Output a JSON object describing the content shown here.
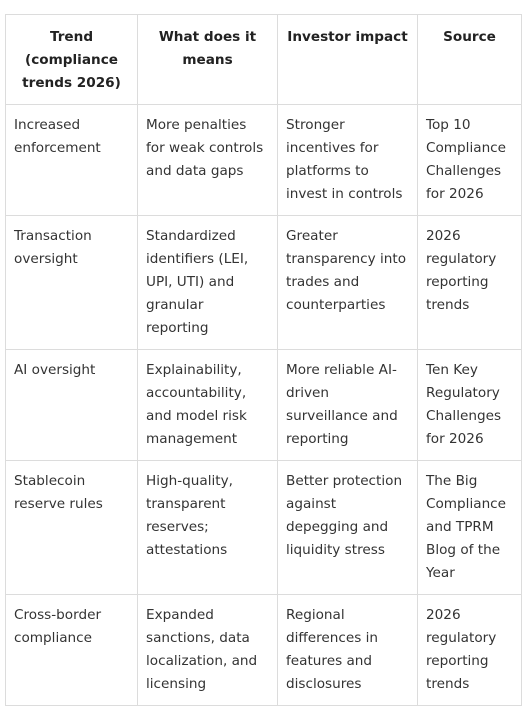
{
  "table": {
    "headers": [
      "Trend (compliance trends 2026)",
      "What does it means",
      "Investor impact",
      "Source"
    ],
    "rows": [
      [
        "Increased enforcement",
        "More penalties for weak controls and data gaps",
        "Stronger incentives for platforms to invest in controls",
        "Top 10 Compliance Challenges for 2026"
      ],
      [
        "Transaction oversight",
        "Standardized identifiers (LEI, UPI, UTI) and granular reporting",
        "Greater transparency into trades and counterparties",
        "2026 regulatory reporting trends"
      ],
      [
        "AI oversight",
        "Explainability, accountability, and model risk management",
        "More reliable AI-driven surveillance and reporting",
        "Ten Key Regulatory Challenges for 2026"
      ],
      [
        "Stablecoin reserve rules",
        "High-quality, transparent reserves; attestations",
        "Better protection against depegging and liquidity stress",
        "The Big Compliance and TPRM Blog of the Year"
      ],
      [
        "Cross-border compliance",
        "Expanded sanctions, data localization, and licensing",
        "Regional differences in features and disclosures",
        "2026 regulatory reporting trends"
      ]
    ]
  }
}
